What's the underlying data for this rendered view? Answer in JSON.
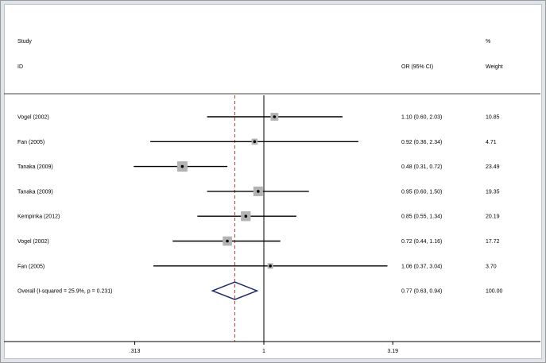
{
  "chart_data": {
    "type": "forest",
    "headers": {
      "study_line1": "Study",
      "study_line2": "ID",
      "or_label": "OR (95% CI)",
      "weight_line1": "%",
      "weight_line2": "Weight"
    },
    "studies": [
      {
        "label": "Vogel (2002)",
        "or": 1.1,
        "lo": 0.6,
        "hi": 2.03,
        "ci_text": "1.10 (0.60, 2.03)",
        "weight": "10.85"
      },
      {
        "label": "Fan (2005)",
        "or": 0.92,
        "lo": 0.36,
        "hi": 2.34,
        "ci_text": "0.92 (0.36, 2.34)",
        "weight": "4.71"
      },
      {
        "label": "Tanaka (2009)",
        "or": 0.48,
        "lo": 0.31,
        "hi": 0.72,
        "ci_text": "0.48 (0.31, 0.72)",
        "weight": "23.49"
      },
      {
        "label": "Tanaka (2009)",
        "or": 0.95,
        "lo": 0.6,
        "hi": 1.5,
        "ci_text": "0.95 (0.60, 1.50)",
        "weight": "19.35"
      },
      {
        "label": "Kempinka (2012)",
        "or": 0.85,
        "lo": 0.55,
        "hi": 1.34,
        "ci_text": "0.85 (0.55, 1.34)",
        "weight": "20.19"
      },
      {
        "label": "Vogel (2002)",
        "or": 0.72,
        "lo": 0.44,
        "hi": 1.16,
        "ci_text": "0.72 (0.44, 1.16)",
        "weight": "17.72"
      },
      {
        "label": "Fan (2005)",
        "or": 1.06,
        "lo": 0.37,
        "hi": 3.04,
        "ci_text": "1.06 (0.37, 3.04)",
        "weight": "3.70"
      }
    ],
    "overall": {
      "label": "Overall  (I-squared = 25.9%, p = 0.231)",
      "or": 0.77,
      "lo": 0.63,
      "hi": 0.94,
      "ci_text": "0.77 (0.63, 0.94)",
      "weight": "100.00"
    },
    "x_axis": {
      "scale": "log",
      "ticks": [
        0.313,
        1,
        3.19
      ],
      "tick_labels": [
        ".313",
        "1",
        "3.19"
      ],
      "null_line": 1
    },
    "colors": {
      "ci_line": "#000000",
      "weight_box": "#b3b3b3",
      "diamond": "#1f2a6b",
      "overall_line": "#c0392b"
    }
  }
}
